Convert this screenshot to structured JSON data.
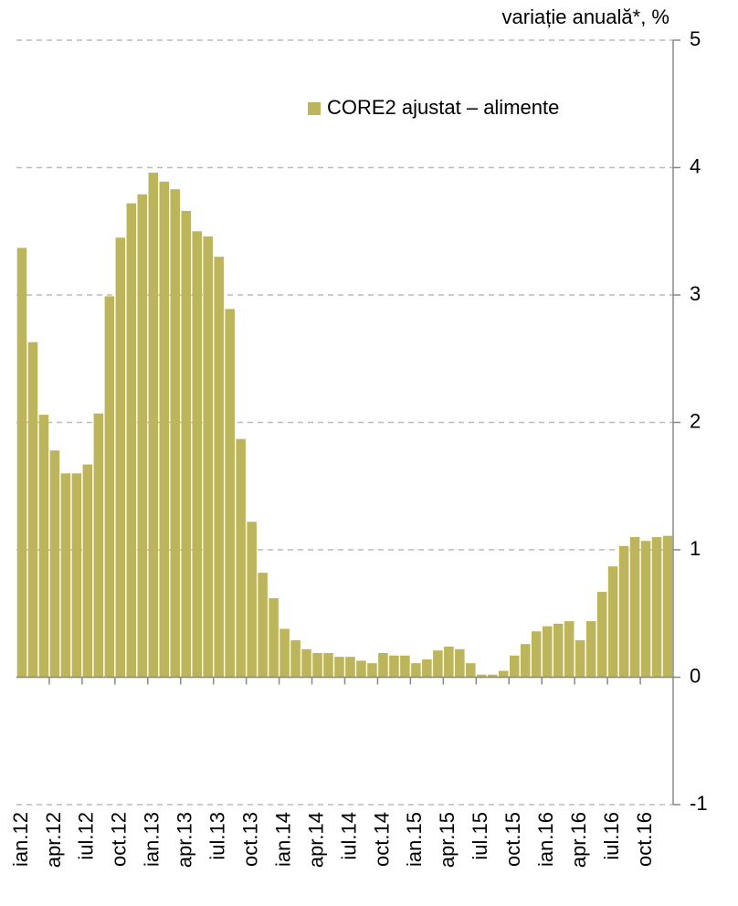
{
  "chart_data": {
    "type": "bar",
    "unit_label": "variație anuală*, %",
    "categories": [
      "ian.12",
      null,
      null,
      "apr.12",
      null,
      null,
      "iul.12",
      null,
      null,
      "oct.12",
      null,
      null,
      "ian.13",
      null,
      null,
      "apr.13",
      null,
      null,
      "iul.13",
      null,
      null,
      "oct.13",
      null,
      null,
      "ian.14",
      null,
      null,
      "apr.14",
      null,
      null,
      "iul.14",
      null,
      null,
      "oct.14",
      null,
      null,
      "ian.15",
      null,
      null,
      "apr.15",
      null,
      null,
      "iul.15",
      null,
      null,
      "oct.15",
      null,
      null,
      "ian.16",
      null,
      null,
      "apr.16",
      null,
      null,
      "iul.16",
      null,
      null,
      "oct.16",
      null,
      null
    ],
    "series": [
      {
        "name": "CORE2 ajustat – alimente",
        "color": "#bdb55c",
        "values": [
          3.37,
          2.63,
          2.06,
          1.78,
          1.6,
          1.6,
          1.67,
          2.07,
          2.99,
          3.45,
          3.72,
          3.79,
          3.96,
          3.89,
          3.83,
          3.66,
          3.5,
          3.46,
          3.3,
          2.89,
          1.87,
          1.22,
          0.82,
          0.62,
          0.38,
          0.29,
          0.22,
          0.19,
          0.19,
          0.16,
          0.16,
          0.13,
          0.11,
          0.19,
          0.17,
          0.17,
          0.11,
          0.14,
          0.21,
          0.24,
          0.22,
          0.11,
          0.02,
          0.02,
          0.05,
          0.17,
          0.26,
          0.36,
          0.4,
          0.42,
          0.44,
          0.29,
          0.44,
          0.67,
          0.87,
          1.03,
          1.1,
          1.07,
          1.1,
          1.11
        ]
      }
    ],
    "ylim": [
      -1,
      5
    ],
    "yticks": [
      -1,
      0,
      1,
      2,
      3,
      4,
      5
    ],
    "grid": true,
    "legend": "top right"
  }
}
